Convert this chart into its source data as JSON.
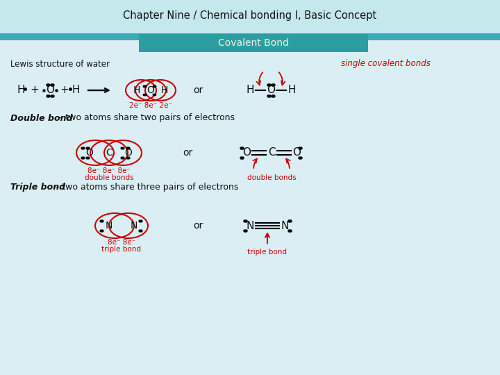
{
  "title": "Chapter Nine / Chemical bonding I, Basic Concept",
  "subtitle": "Covalent Bond",
  "header_bg": "#c5e8ed",
  "header_stripe": "#3aacb5",
  "subtitle_bg": "#2d9ea0",
  "subtitle_color": "#f0f0f0",
  "bg_color": "#daeef3",
  "title_color": "#111111",
  "red_color": "#cc0000",
  "black_color": "#111111",
  "lewis_label": "Lewis structure of water",
  "single_covalent_label": "single covalent bonds",
  "double_bond_label": "Double bond",
  "double_bond_text": " – two atoms share two pairs of electrons",
  "triple_bond_label": "Triple bond",
  "triple_bond_text": " – two atoms share three pairs of electrons",
  "electrons_label": "2e⁻ 8e⁻ 2e⁻",
  "double_electrons_label": "8e⁻ 8e⁻ 8e⁻",
  "double_bonds_label": "double bonds",
  "triple_electrons_label": "8e⁻ 8e⁻",
  "triple_bond_arrow_label": "triple bond",
  "or_text": "or"
}
